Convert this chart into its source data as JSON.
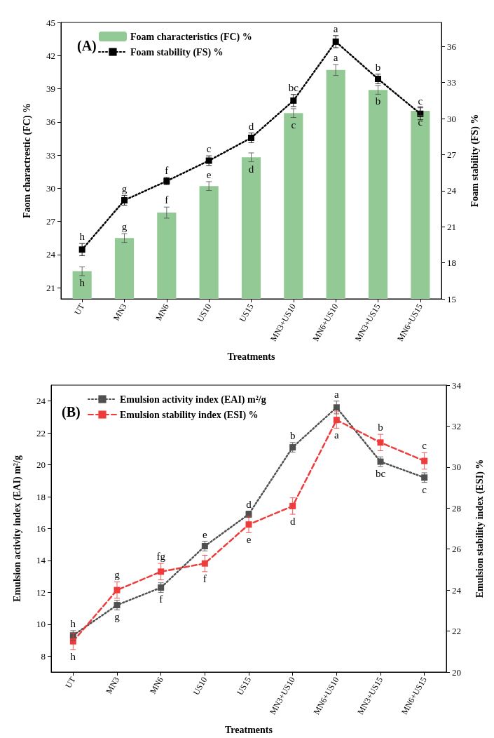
{
  "chart_data": [
    {
      "type": "bar",
      "title": "(A)",
      "xlabel": "Treatments",
      "ylabel": "Faom charactrestic (FC) %",
      "y2label": "Foam stability (FS) %",
      "categories": [
        "UT",
        "MN3",
        "MN6",
        "US10",
        "US15",
        "MN3+US10",
        "MN6+US10",
        "MN3+US15",
        "MN6+US15"
      ],
      "series": [
        {
          "name": "Foam characteristics (FC) %",
          "color": "#93c994",
          "values": [
            22.5,
            25.5,
            27.8,
            30.2,
            32.8,
            36.8,
            40.7,
            38.9,
            37.0
          ],
          "errors": [
            0.4,
            0.4,
            0.5,
            0.4,
            0.4,
            0.4,
            0.5,
            0.4,
            0.4
          ]
        },
        {
          "name": "Foam stability (FS) %",
          "type": "line",
          "axis": "y2",
          "color": "#000000",
          "marker": "square",
          "line_style": "dotted",
          "values": [
            19.1,
            23.2,
            24.8,
            26.5,
            28.4,
            31.5,
            36.4,
            33.3,
            30.4
          ],
          "errors": [
            0.5,
            0.4,
            0.3,
            0.4,
            0.4,
            0.5,
            0.5,
            0.4,
            0.5
          ]
        }
      ],
      "ylim": [
        20,
        45
      ],
      "yticks": [
        21,
        24,
        27,
        30,
        33,
        36,
        39,
        42,
        45
      ],
      "y2lim": [
        15,
        38
      ],
      "y2ticks": [
        15,
        18,
        21,
        24,
        27,
        30,
        33,
        36
      ],
      "grid": false,
      "legend": "top left",
      "annotations": [
        "h",
        "g",
        "f",
        "e",
        "d",
        "c",
        "a",
        "b",
        "c",
        "h",
        "g",
        "f",
        "c",
        "d",
        "bc",
        "a",
        "b",
        "c"
      ]
    },
    {
      "type": "line",
      "title": "(B)",
      "xlabel": "Treatments",
      "ylabel": "Emulsion activity index (EAI) m²/g",
      "y2label": "Emulsion stability index (ESI) %",
      "categories": [
        "UT",
        "MN3",
        "MN6",
        "US10",
        "US15",
        "MN3+US10",
        "MN6+US10",
        "MN3+US15",
        "MN6+US15"
      ],
      "series": [
        {
          "name": "Emulsion activity index (EAI) m²/g",
          "color": "#505050",
          "marker": "square",
          "line_style": "dotted",
          "values": [
            9.3,
            11.2,
            12.3,
            14.9,
            16.9,
            21.1,
            23.6,
            20.2,
            19.2
          ],
          "errors": [
            0.3,
            0.3,
            0.3,
            0.3,
            0.2,
            0.3,
            0.4,
            0.3,
            0.3
          ]
        },
        {
          "name": "Emulsion stability index (ESI) %",
          "axis": "y2",
          "color": "#ee3b3b",
          "marker": "square",
          "line_style": "dashed",
          "values": [
            21.5,
            24.0,
            24.9,
            25.3,
            27.2,
            28.1,
            32.3,
            31.2,
            30.3
          ],
          "errors": [
            0.4,
            0.4,
            0.4,
            0.4,
            0.4,
            0.4,
            0.4,
            0.4,
            0.4
          ]
        }
      ],
      "ylim": [
        7,
        25
      ],
      "yticks": [
        8,
        10,
        12,
        14,
        16,
        18,
        20,
        22,
        24
      ],
      "y2lim": [
        20,
        34
      ],
      "y2ticks": [
        20,
        22,
        24,
        26,
        28,
        30,
        32,
        34
      ],
      "grid": false,
      "legend": "top left",
      "annotations": [
        "h",
        "g",
        "f",
        "e",
        "d",
        "b",
        "a",
        "bc",
        "c",
        "h",
        "g",
        "fg",
        "f",
        "e",
        "d",
        "a",
        "b",
        "c"
      ]
    }
  ]
}
